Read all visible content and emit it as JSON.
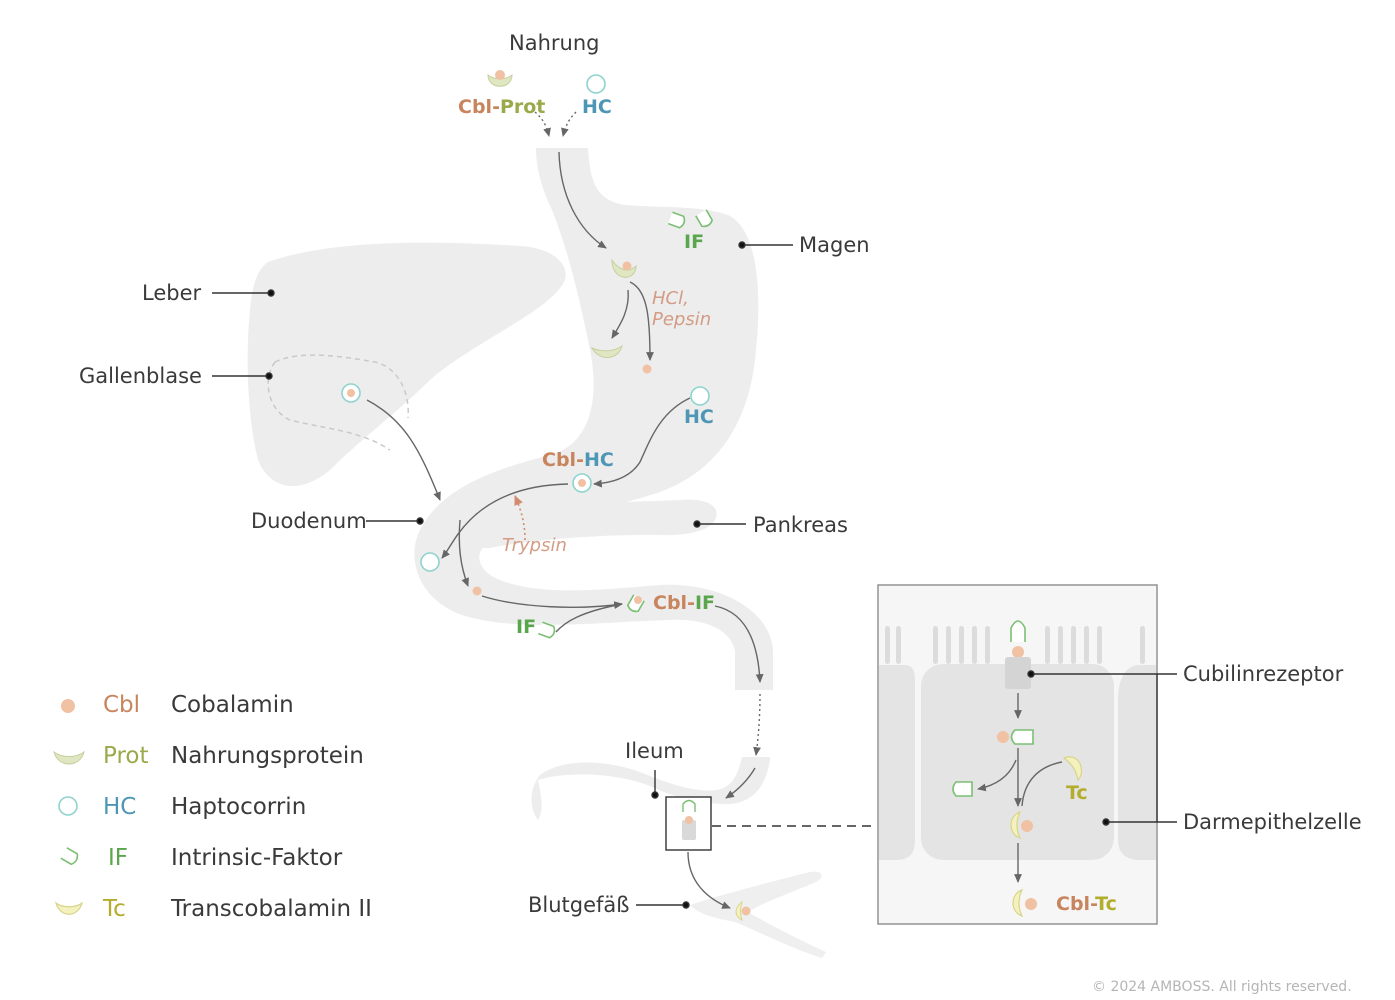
{
  "top_label": "Nahrung",
  "organs": {
    "magen": "Magen",
    "leber": "Leber",
    "gallenblase": "Gallenblase",
    "duodenum": "Duodenum",
    "pankreas": "Pankreas",
    "ileum": "Ileum",
    "blutgefaess": "Blutgefäß",
    "cubilinrezeptor": "Cubilinrezeptor",
    "darmepithelzelle": "Darmepithelzelle"
  },
  "molecule_labels": {
    "cbl": "Cbl",
    "prot": "Prot",
    "hc": "HC",
    "if": "IF",
    "tc": "Tc",
    "dash": "-"
  },
  "enzymes": {
    "hcl": "HCl,",
    "pepsin": "Pepsin",
    "trypsin": "Trypsin"
  },
  "legend": [
    {
      "code": "Cbl",
      "name": "Cobalamin",
      "color": "#c8855d",
      "icon": "cobalamin-dot"
    },
    {
      "code": "Prot",
      "name": "Nahrungsprotein",
      "color": "#9aaa4a",
      "icon": "protein-crescent"
    },
    {
      "code": "HC",
      "name": "Haptocorrin",
      "color": "#4d96b5",
      "icon": "haptocorrin-ring"
    },
    {
      "code": "IF",
      "name": "Intrinsic-Faktor",
      "color": "#5aa64d",
      "icon": "intrinsic-factor-cup"
    },
    {
      "code": "Tc",
      "name": "Transcobalamin II",
      "color": "#b3ad2c",
      "icon": "transcobalamin-crescent"
    }
  ],
  "copyright": "© 2024 AMBOSS. All rights reserved.",
  "colors": {
    "organ_fill": "#ededed",
    "cbl": "#f0c1a3",
    "prot_fill": "#dfe6c2",
    "hc_stroke": "#8fd3cf",
    "if_stroke": "#7bbf74",
    "tc_fill": "#f3f1bd",
    "arrow": "#666666",
    "trypsin_arrow": "#d38a6e"
  }
}
